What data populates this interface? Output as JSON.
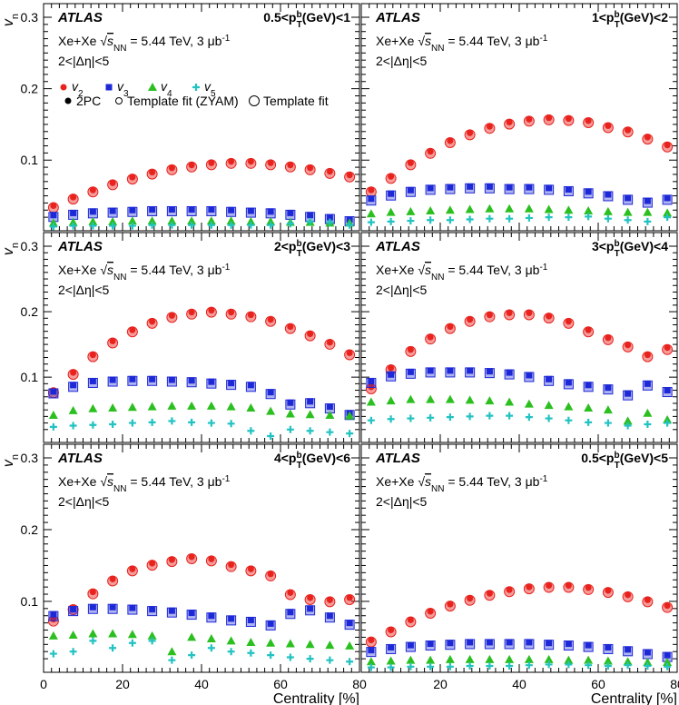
{
  "figure": {
    "y_axis_label": "v",
    "y_axis_label_sub": "n",
    "x_axis_label": "Centrality [%]",
    "x_ticks": [
      "0",
      "20",
      "40",
      "60",
      "80"
    ],
    "y_ticks": [
      "0.1",
      "0.2",
      "0.3"
    ],
    "atlas_label": "ATLAS",
    "collision_prefix": "Xe+Xe ",
    "energy_suffix": " = 5.44 TeV, 3 μb",
    "lumi_exp": "-1",
    "eta_text": "2<|Δη|<5",
    "legend": {
      "v2": "v",
      "v2_sub": "2",
      "v3": "v",
      "v3_sub": "3",
      "v4": "v",
      "v4_sub": "4",
      "v5": "v",
      "v5_sub": "5",
      "twopc": "2PC",
      "zyam": "Template fit (ZYAM)",
      "template": "Template fit"
    },
    "colors": {
      "v2": "#e8231e",
      "v3": "#1d28d6",
      "v4": "#2bbf1f",
      "v5": "#22c2c2"
    }
  },
  "chart_data": {
    "type": "scatter",
    "xlim": [
      0,
      80
    ],
    "ylim": [
      0.01,
      0.32
    ],
    "x": [
      2.5,
      7.5,
      12.5,
      17.5,
      22.5,
      27.5,
      32.5,
      37.5,
      42.5,
      47.5,
      52.5,
      57.5,
      62.5,
      67.5,
      72.5,
      77.5
    ],
    "panels": [
      {
        "pt_label_lo": "0.5<p",
        "pt_label_hi": "(GeV)<1",
        "series": [
          {
            "name": "v2",
            "values": [
              0.036,
              0.048,
              0.058,
              0.068,
              0.076,
              0.083,
              0.089,
              0.093,
              0.096,
              0.098,
              0.098,
              0.096,
              0.093,
              0.089,
              0.084,
              0.079
            ]
          },
          {
            "name": "v3",
            "values": [
              0.023,
              0.026,
              0.028,
              0.029,
              0.03,
              0.031,
              0.031,
              0.031,
              0.031,
              0.03,
              0.029,
              0.028,
              0.026,
              0.023,
              0.02,
              0.017
            ]
          },
          {
            "name": "v4",
            "values": [
              0.012,
              0.013,
              0.014,
              0.014,
              0.015,
              0.015,
              0.015,
              0.015,
              0.015,
              0.015,
              0.014,
              0.014,
              0.013,
              0.013,
              0.012,
              0.012
            ]
          },
          {
            "name": "v5",
            "values": [
              0.007,
              0.008,
              0.008,
              0.008,
              0.008,
              0.009,
              0.009,
              0.009,
              0.009,
              0.009,
              0.009,
              0.009,
              0.011,
              0.014,
              0.013,
              0.009
            ]
          }
        ]
      },
      {
        "pt_label_lo": "1<p",
        "pt_label_hi": "(GeV)<2",
        "series": [
          {
            "name": "v2",
            "values": [
              0.058,
              0.077,
              0.096,
              0.112,
              0.127,
              0.138,
              0.147,
              0.153,
              0.157,
              0.159,
              0.158,
              0.155,
              0.148,
              0.142,
              0.132,
              0.121
            ]
          },
          {
            "name": "v3",
            "values": [
              0.046,
              0.053,
              0.058,
              0.061,
              0.062,
              0.063,
              0.063,
              0.062,
              0.062,
              0.061,
              0.059,
              0.056,
              0.052,
              0.047,
              0.043,
              0.047
            ]
          },
          {
            "name": "v4",
            "values": [
              0.025,
              0.027,
              0.028,
              0.029,
              0.03,
              0.031,
              0.032,
              0.032,
              0.032,
              0.031,
              0.03,
              0.029,
              0.028,
              0.027,
              0.027,
              0.026
            ]
          },
          {
            "name": "v5",
            "values": [
              0.013,
              0.014,
              0.015,
              0.016,
              0.016,
              0.017,
              0.018,
              0.018,
              0.019,
              0.02,
              0.02,
              0.021,
              0.018,
              0.016,
              0.014,
              0.02
            ]
          }
        ]
      },
      {
        "pt_label_lo": "2<p",
        "pt_label_hi": "(GeV)<3",
        "series": [
          {
            "name": "v2",
            "values": [
              0.079,
              0.107,
              0.134,
              0.155,
              0.172,
              0.185,
              0.194,
              0.199,
              0.202,
              0.199,
              0.195,
              0.188,
              0.177,
              0.166,
              0.153,
              0.137
            ]
          },
          {
            "name": "v3",
            "values": [
              0.078,
              0.088,
              0.094,
              0.096,
              0.097,
              0.097,
              0.096,
              0.095,
              0.093,
              0.091,
              0.088,
              0.077,
              0.061,
              0.063,
              0.055,
              0.045
            ]
          },
          {
            "name": "v4",
            "values": [
              0.042,
              0.049,
              0.052,
              0.053,
              0.054,
              0.055,
              0.056,
              0.056,
              0.056,
              0.055,
              0.053,
              0.048,
              0.044,
              0.043,
              0.042,
              0.041
            ]
          },
          {
            "name": "v5",
            "values": [
              0.024,
              0.026,
              0.027,
              0.028,
              0.03,
              0.031,
              0.033,
              0.031,
              0.03,
              0.029,
              0.018,
              0.01,
              0.02,
              0.018,
              0.016,
              0.014
            ]
          }
        ]
      },
      {
        "pt_label_lo": "3<p",
        "pt_label_hi": "(GeV)<4",
        "series": [
          {
            "name": "v2",
            "values": [
              0.085,
              0.114,
              0.142,
              0.161,
              0.177,
              0.188,
              0.195,
              0.198,
              0.198,
              0.193,
              0.185,
              0.172,
              0.16,
              0.149,
              0.134,
              0.145
            ]
          },
          {
            "name": "v3",
            "values": [
              0.094,
              0.104,
              0.108,
              0.11,
              0.11,
              0.11,
              0.109,
              0.107,
              0.103,
              0.097,
              0.092,
              0.088,
              0.084,
              0.075,
              0.09,
              0.08
            ]
          },
          {
            "name": "v4",
            "values": [
              0.062,
              0.064,
              0.066,
              0.066,
              0.066,
              0.065,
              0.064,
              0.062,
              0.059,
              0.057,
              0.055,
              0.053,
              0.05,
              0.033,
              0.045,
              0.035
            ]
          },
          {
            "name": "v5",
            "values": [
              0.034,
              0.036,
              0.037,
              0.038,
              0.039,
              0.04,
              0.041,
              0.041,
              0.039,
              0.037,
              0.034,
              0.031,
              0.03,
              0.026,
              0.028,
              0.03
            ]
          }
        ]
      },
      {
        "pt_label_lo": "4<p",
        "pt_label_hi": "(GeV)<6",
        "series": [
          {
            "name": "v2",
            "values": [
              0.075,
              0.091,
              0.113,
              0.131,
              0.145,
              0.153,
              0.158,
              0.162,
              0.159,
              0.151,
              0.145,
              0.138,
              0.112,
              0.105,
              0.102,
              0.105
            ]
          },
          {
            "name": "v3",
            "values": [
              0.082,
              0.089,
              0.092,
              0.092,
              0.091,
              0.089,
              0.087,
              0.084,
              0.08,
              0.076,
              0.074,
              0.069,
              0.085,
              0.09,
              0.08,
              0.07
            ]
          },
          {
            "name": "v4",
            "values": [
              0.052,
              0.053,
              0.055,
              0.055,
              0.054,
              0.052,
              0.03,
              0.05,
              0.048,
              0.045,
              0.043,
              0.042,
              0.041,
              0.04,
              0.039,
              0.038
            ]
          },
          {
            "name": "v5",
            "values": [
              0.027,
              0.03,
              0.045,
              0.035,
              0.042,
              0.045,
              0.018,
              0.025,
              0.035,
              0.03,
              0.028,
              0.025,
              0.022,
              0.02,
              0.018,
              0.016
            ]
          }
        ]
      },
      {
        "pt_label_lo": "0.5<p",
        "pt_label_hi": "(GeV)<5",
        "series": [
          {
            "name": "v2",
            "values": [
              0.046,
              0.06,
              0.074,
              0.086,
              0.096,
              0.104,
              0.111,
              0.116,
              0.12,
              0.122,
              0.122,
              0.119,
              0.115,
              0.109,
              0.102,
              0.094
            ]
          },
          {
            "name": "v3",
            "values": [
              0.032,
              0.036,
              0.039,
              0.041,
              0.042,
              0.043,
              0.043,
              0.043,
              0.043,
              0.042,
              0.041,
              0.039,
              0.036,
              0.033,
              0.029,
              0.025
            ]
          },
          {
            "name": "v4",
            "values": [
              0.016,
              0.017,
              0.018,
              0.018,
              0.019,
              0.019,
              0.019,
              0.019,
              0.019,
              0.019,
              0.018,
              0.018,
              0.017,
              0.016,
              0.015,
              0.015
            ]
          },
          {
            "name": "v5",
            "values": [
              0.008,
              0.008,
              0.009,
              0.009,
              0.009,
              0.01,
              0.01,
              0.01,
              0.011,
              0.012,
              0.012,
              0.011,
              0.01,
              0.011,
              0.01,
              0.009
            ]
          }
        ]
      }
    ]
  }
}
